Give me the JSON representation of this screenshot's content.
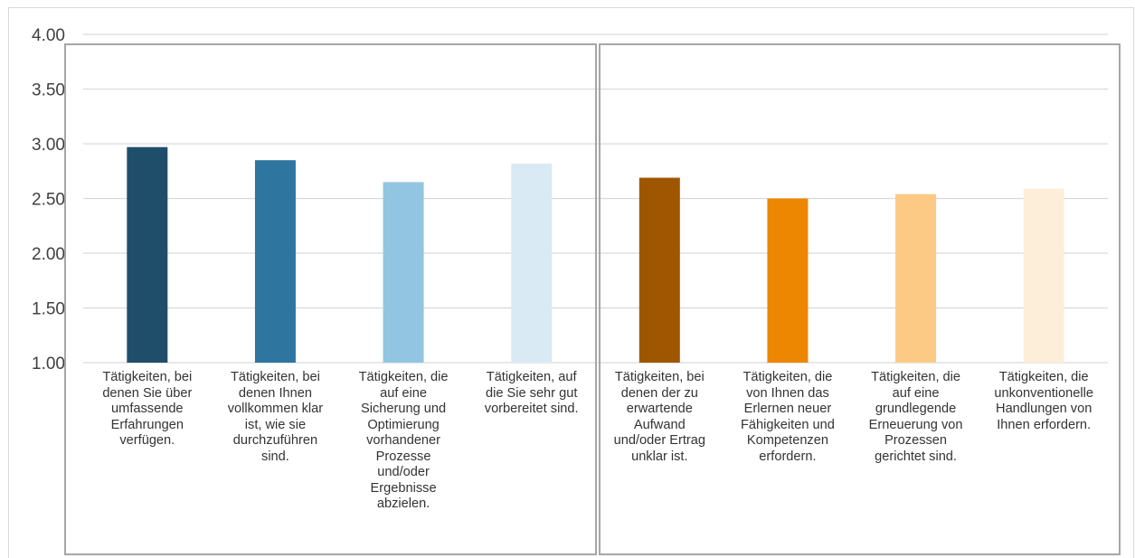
{
  "chart_data": {
    "type": "bar",
    "title": "",
    "xlabel": "",
    "ylabel": "",
    "ylim": [
      1.0,
      4.0
    ],
    "yticks": [
      "1.00",
      "1.50",
      "2.00",
      "2.50",
      "3.00",
      "3.50",
      "4.00"
    ],
    "grid": true,
    "categories": [
      "Tätigkeiten, bei denen Sie über umfassende Erfahrungen verfügen.",
      "Tätigkeiten, bei denen Ihnen vollkommen klar ist, wie sie durchzuführen sind.",
      "Tätigkeiten, die auf eine Sicherung und Optimierung vorhandener Prozesse und/oder Ergebnisse abzielen.",
      "Tätigkeiten, auf die Sie sehr gut vorbereitet sind.",
      "Tätigkeiten, bei denen der zu erwartende Aufwand und/oder Ertrag unklar ist.",
      "Tätigkeiten, die von Ihnen das Erlernen neuer Fähigkeiten und Kompetenzen erfordern.",
      "Tätigkeiten, die auf eine grundlegende Erneuerung von Prozessen gerichtet sind.",
      "Tätigkeiten, die unkonventionelle Handlungen von Ihnen erfordern."
    ],
    "category_lines": [
      [
        "Tätigkeiten, bei",
        "denen Sie über",
        "umfassende",
        "Erfahrungen",
        "verfügen."
      ],
      [
        "Tätigkeiten, bei",
        "denen Ihnen",
        "vollkommen klar",
        "ist, wie sie",
        "durchzuführen",
        "sind."
      ],
      [
        "Tätigkeiten, die",
        "auf eine",
        "Sicherung und",
        "Optimierung",
        "vorhandener",
        "Prozesse",
        "und/oder",
        "Ergebnisse",
        "abzielen."
      ],
      [
        "Tätigkeiten, auf",
        "die Sie sehr gut",
        "vorbereitet sind."
      ],
      [
        "Tätigkeiten, bei",
        "denen der zu",
        "erwartende",
        "Aufwand",
        "und/oder Ertrag",
        "unklar ist."
      ],
      [
        "Tätigkeiten, die",
        "von Ihnen das",
        "Erlernen neuer",
        "Fähigkeiten und",
        "Kompetenzen",
        "erfordern."
      ],
      [
        "Tätigkeiten, die",
        "auf eine",
        "grundlegende",
        "Erneuerung von",
        "Prozessen",
        "gerichtet sind."
      ],
      [
        "Tätigkeiten, die",
        "unkonventionelle",
        "Handlungen von",
        "Ihnen erfordern."
      ]
    ],
    "values": [
      2.97,
      2.85,
      2.65,
      2.82,
      2.69,
      2.5,
      2.54,
      2.59
    ],
    "colors": [
      "#1f4e6b",
      "#2e75a0",
      "#92c5e2",
      "#daeaf4",
      "#9e5700",
      "#ed8600",
      "#fdca86",
      "#fdeed9"
    ],
    "gridline_color": "#d9d9d9",
    "group_border_color": "#a6a6a6"
  }
}
